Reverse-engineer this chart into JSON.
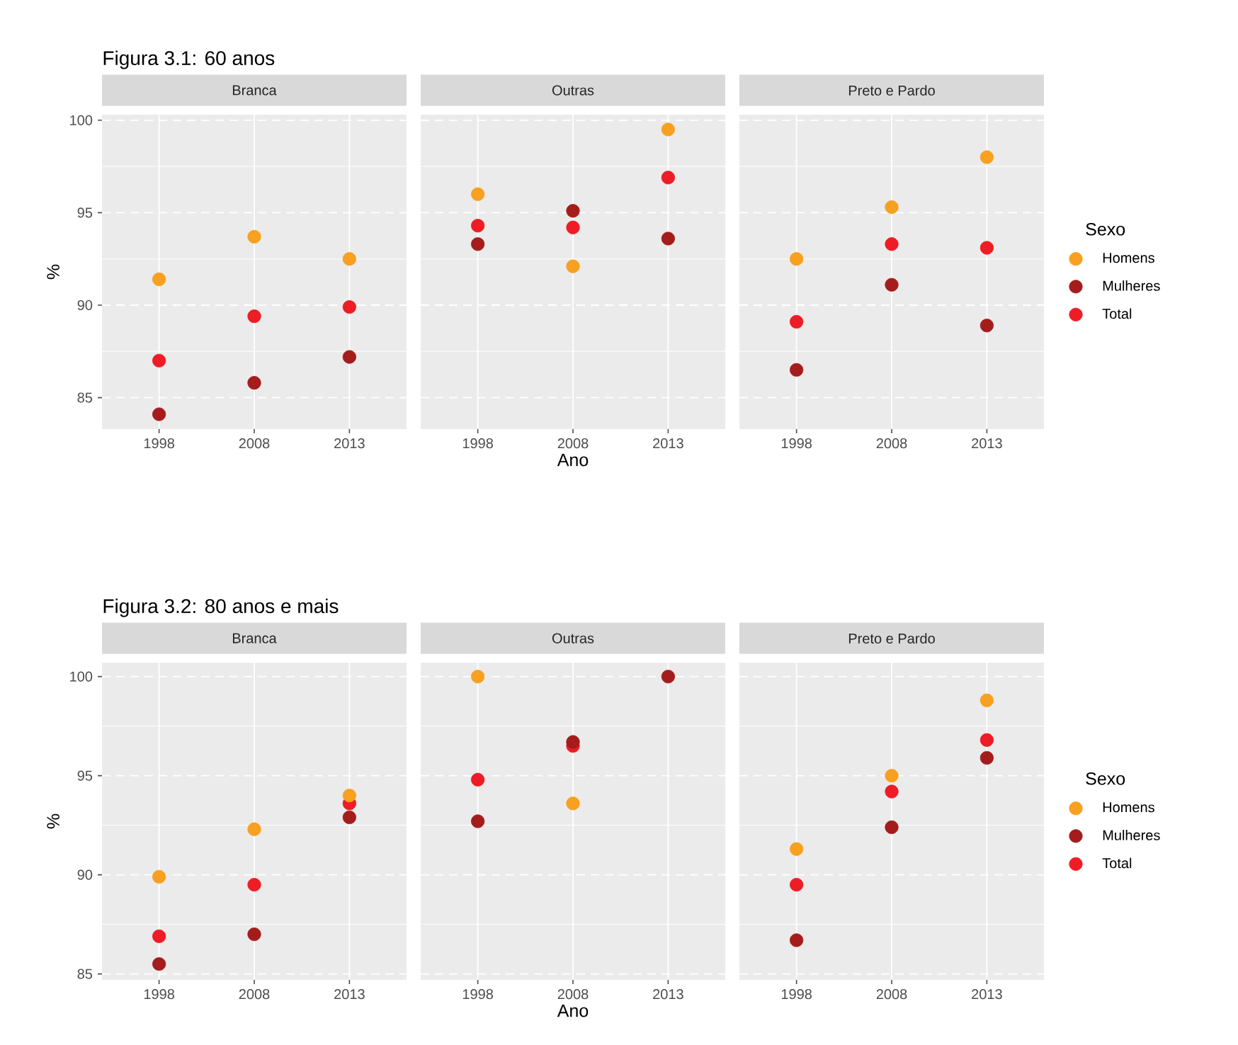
{
  "chart_data": [
    {
      "type": "scatter",
      "title": "Branca",
      "annotations": [
        "Figura 3.1: 60 anos"
      ],
      "ylabel": "%",
      "categories": [
        "1998",
        "2008",
        "2013"
      ],
      "ylim": [
        83.3,
        100.3
      ],
      "yticks": [
        85,
        90,
        95,
        100
      ],
      "grid": true,
      "marker": "circle",
      "series": [
        {
          "color": "#f8a01f",
          "values": [
            91.4,
            93.7,
            92.5
          ]
        },
        {
          "color": "#a51c1c",
          "values": [
            84.1,
            85.8,
            87.2
          ]
        },
        {
          "color": "#ee1c25",
          "values": [
            87.0,
            89.4,
            89.9
          ]
        }
      ]
    },
    {
      "type": "scatter",
      "title": "Outras",
      "xlabel": "Ano",
      "categories": [
        "1998",
        "2008",
        "2013"
      ],
      "ylim": [
        83.3,
        100.3
      ],
      "yticks": [
        85,
        90,
        95,
        100
      ],
      "grid": true,
      "marker": "circle",
      "tick_labels": "x",
      "series": [
        {
          "color": "#f8a01f",
          "values": [
            96.0,
            92.1,
            99.5
          ]
        },
        {
          "color": "#a51c1c",
          "values": [
            93.3,
            95.1,
            93.6
          ]
        },
        {
          "color": "#ee1c25",
          "values": [
            94.3,
            94.2,
            96.9
          ]
        }
      ]
    },
    {
      "type": "scatter",
      "title": "Preto e Pardo",
      "legend_title": "Sexo",
      "legend": "right",
      "categories": [
        "1998",
        "2008",
        "2013"
      ],
      "ylim": [
        83.3,
        100.3
      ],
      "yticks": [
        85,
        90,
        95,
        100
      ],
      "grid": true,
      "marker": "circle",
      "tick_labels": "x",
      "series": [
        {
          "name": "Homens",
          "color": "#f8a01f",
          "values": [
            92.5,
            95.3,
            98.0
          ]
        },
        {
          "name": "Mulheres",
          "color": "#a51c1c",
          "values": [
            86.5,
            91.1,
            88.9
          ]
        },
        {
          "name": "Total",
          "color": "#ee1c25",
          "values": [
            89.1,
            93.3,
            93.1
          ]
        }
      ]
    },
    {
      "type": "scatter",
      "title": "Branca",
      "annotations": [
        "Figura 3.2: 80 anos e mais"
      ],
      "ylabel": "%",
      "categories": [
        "1998",
        "2008",
        "2013"
      ],
      "ylim": [
        84.7,
        100.7
      ],
      "yticks": [
        85,
        90,
        95,
        100
      ],
      "grid": true,
      "marker": "circle",
      "series": [
        {
          "color": "#f8a01f",
          "values": [
            89.9,
            92.3,
            94.0
          ]
        },
        {
          "color": "#a51c1c",
          "values": [
            85.5,
            87.0,
            92.9
          ]
        },
        {
          "color": "#ee1c25",
          "values": [
            86.9,
            89.5,
            93.6
          ]
        }
      ]
    },
    {
      "type": "scatter",
      "title": "Outras",
      "xlabel": "Ano",
      "categories": [
        "1998",
        "2008",
        "2013"
      ],
      "ylim": [
        84.7,
        100.7
      ],
      "yticks": [
        85,
        90,
        95,
        100
      ],
      "grid": true,
      "marker": "circle",
      "tick_labels": "x",
      "series": [
        {
          "color": "#f8a01f",
          "values": [
            100,
            93.6,
            null
          ]
        },
        {
          "color": "#a51c1c",
          "values": [
            92.7,
            96.7,
            100
          ]
        },
        {
          "color": "#ee1c25",
          "values": [
            94.8,
            96.5,
            null
          ]
        }
      ]
    },
    {
      "type": "scatter",
      "title": "Preto e Pardo",
      "legend_title": "Sexo",
      "legend": "right",
      "categories": [
        "1998",
        "2008",
        "2013"
      ],
      "ylim": [
        84.7,
        100.7
      ],
      "yticks": [
        85,
        90,
        95,
        100
      ],
      "grid": true,
      "marker": "circle",
      "tick_labels": "x",
      "series": [
        {
          "name": "Homens",
          "color": "#f8a01f",
          "values": [
            91.3,
            95.0,
            98.8
          ]
        },
        {
          "name": "Mulheres",
          "color": "#a51c1c",
          "values": [
            86.7,
            92.4,
            95.9
          ]
        },
        {
          "name": "Total",
          "color": "#ee1c25",
          "values": [
            89.5,
            94.2,
            96.8
          ]
        }
      ]
    }
  ]
}
